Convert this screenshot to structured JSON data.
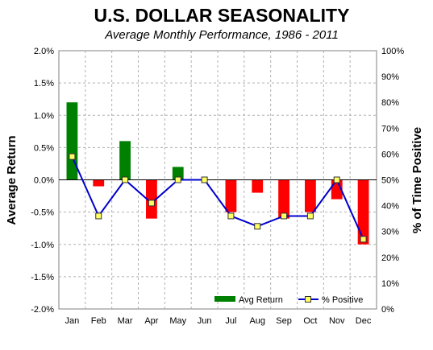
{
  "chart_data": {
    "type": "bar",
    "title": "U.S. DOLLAR SEASONALITY",
    "subtitle": "Average Monthly Performance, 1986 - 2011",
    "categories": [
      "Jan",
      "Feb",
      "Mar",
      "Apr",
      "May",
      "Jun",
      "Jul",
      "Aug",
      "Sep",
      "Oct",
      "Nov",
      "Dec"
    ],
    "series": [
      {
        "name": "Avg Return",
        "type": "bar",
        "axis": "left",
        "color": "#008000",
        "negative_color": "#ff0000",
        "values": [
          1.2,
          -0.1,
          0.6,
          -0.6,
          0.2,
          0.0,
          -0.5,
          -0.2,
          -0.6,
          -0.5,
          -0.3,
          -1.0
        ]
      },
      {
        "name": "% Positive",
        "type": "line",
        "axis": "right",
        "color": "#0000cc",
        "marker_color": "#ffff66",
        "values": [
          59,
          36,
          50,
          41,
          50,
          50,
          36,
          32,
          36,
          36,
          50,
          27
        ]
      }
    ],
    "ylabel": "Average Return",
    "y2label": "% of Time Positive",
    "ylim": [
      -2.0,
      2.0
    ],
    "y2lim": [
      0,
      100
    ],
    "yticks": [
      "-2.0%",
      "-1.5%",
      "-1.0%",
      "-0.5%",
      "0.0%",
      "0.5%",
      "1.0%",
      "1.5%",
      "2.0%"
    ],
    "y2ticks": [
      "0%",
      "10%",
      "20%",
      "30%",
      "40%",
      "50%",
      "60%",
      "70%",
      "80%",
      "90%",
      "100%"
    ],
    "grid": true,
    "legend": "bottom-right"
  }
}
